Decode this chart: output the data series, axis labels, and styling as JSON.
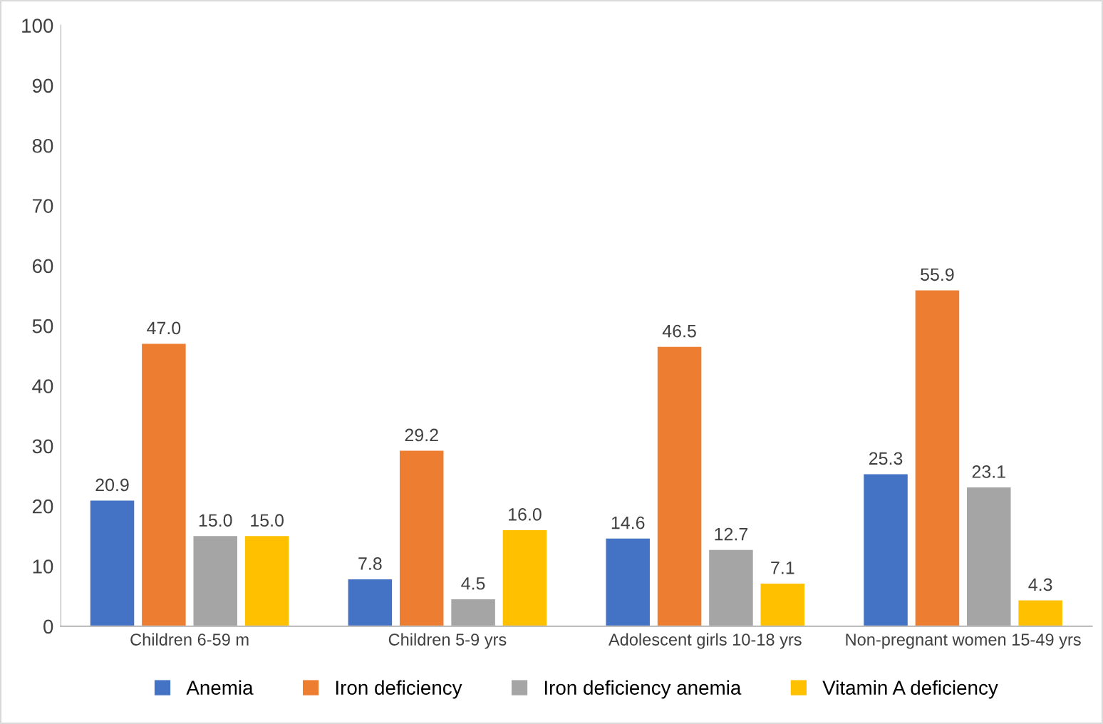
{
  "chart_data": {
    "type": "bar",
    "categories": [
      "Children 6-59 m",
      "Children 5-9 yrs",
      "Adolescent girls 10-18 yrs",
      "Non-pregnant women 15-49 yrs"
    ],
    "series": [
      {
        "name": "Anemia",
        "color": "#4472c4",
        "values": [
          20.9,
          7.8,
          14.6,
          25.3
        ],
        "value_labels": [
          "20.9",
          "7.8",
          "14.6",
          "25.3"
        ]
      },
      {
        "name": "Iron deficiency",
        "color": "#ed7d31",
        "values": [
          47.0,
          29.2,
          46.5,
          55.9
        ],
        "value_labels": [
          "47.0",
          "29.2",
          "46.5",
          "55.9"
        ]
      },
      {
        "name": "Iron deficiency anemia",
        "color": "#a5a5a5",
        "values": [
          15.0,
          4.5,
          12.7,
          23.1
        ],
        "value_labels": [
          "15.0",
          "4.5",
          "12.7",
          "23.1"
        ]
      },
      {
        "name": "Vitamin A deficiency",
        "color": "#ffc000",
        "values": [
          15.0,
          16.0,
          7.1,
          4.3
        ],
        "value_labels": [
          "15.0",
          "16.0",
          "7.1",
          "4.3"
        ]
      }
    ],
    "ylim": [
      0,
      100
    ],
    "yticks": [
      0,
      10,
      20,
      30,
      40,
      50,
      60,
      70,
      80,
      90,
      100
    ],
    "grid": false,
    "legend": "bottom"
  }
}
